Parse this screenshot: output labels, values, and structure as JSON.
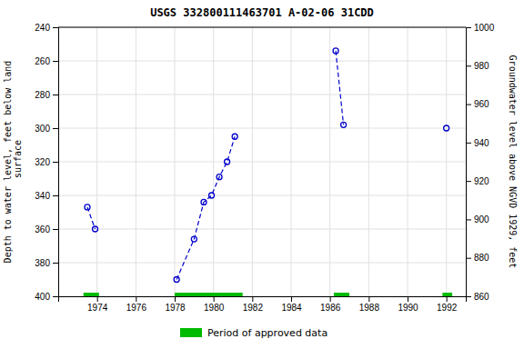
{
  "chart_data": {
    "type": "line",
    "title": "USGS 332800111463701 A-02-06 31CDD",
    "ylabel": "Depth to water level, feet below land\n surface",
    "y2label": "Groundwater level above NGVD 1929, feet",
    "series": [
      {
        "type": "line",
        "color": "#0000cc",
        "line_style": "dashed",
        "marker": "circle-open",
        "x": [
          1973.5,
          1973.9
        ],
        "values": [
          347,
          360
        ]
      },
      {
        "type": "line",
        "color": "#0000cc",
        "line_style": "dashed",
        "marker": "circle-open",
        "x": [
          1978.1,
          1979.0,
          1979.5,
          1979.9,
          1980.3,
          1980.7,
          1981.1
        ],
        "values": [
          390,
          366,
          344,
          340,
          329,
          320,
          305
        ]
      },
      {
        "type": "line",
        "color": "#0000cc",
        "line_style": "dashed",
        "marker": "circle-open",
        "x": [
          1986.3,
          1986.7
        ],
        "values": [
          254,
          298
        ]
      },
      {
        "type": "line",
        "color": "#0000cc",
        "line_style": "dashed",
        "marker": "circle-open",
        "x": [
          1992.0
        ],
        "values": [
          300
        ]
      },
      {
        "type": "bar",
        "orientation": "horizontal",
        "name": "Period of approved data",
        "color": "#00bb00",
        "y": 400,
        "starts": [
          1973.3,
          1978.0,
          1986.2,
          1991.8
        ],
        "ends": [
          1974.1,
          1981.5,
          1987.0,
          1992.3
        ]
      }
    ],
    "xlim": [
      1972,
      1993
    ],
    "xticks": [
      1974,
      1976,
      1978,
      1980,
      1982,
      1984,
      1986,
      1988,
      1990,
      1992
    ],
    "ylim": [
      400,
      240
    ],
    "yticks": [
      240,
      260,
      280,
      300,
      320,
      340,
      360,
      380,
      400
    ],
    "y2lim": [
      860,
      1000
    ],
    "y2ticks": [
      860,
      880,
      900,
      920,
      940,
      960,
      980,
      1000
    ],
    "grid": true,
    "legend": "bottom"
  }
}
